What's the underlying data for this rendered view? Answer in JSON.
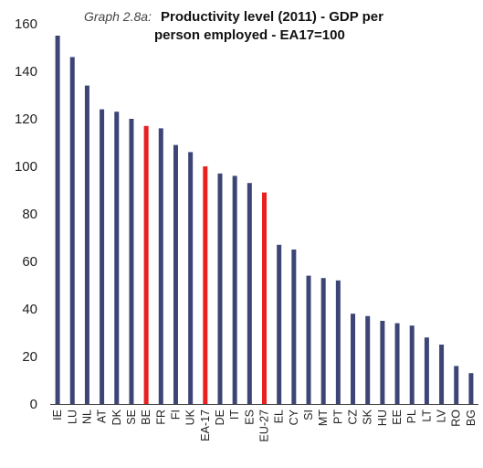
{
  "chart_data": {
    "type": "bar",
    "title_prefix": "Graph 2.8a:",
    "title_line1": "Productivity level (2011) - GDP per",
    "title_line2": "person employed - EA17=100",
    "xlabel": "",
    "ylabel": "",
    "ylim": [
      0,
      160
    ],
    "yticks": [
      "0",
      "20",
      "40",
      "60",
      "80",
      "100",
      "120",
      "140",
      "160"
    ],
    "grid": false,
    "categories": [
      "IE",
      "LU",
      "NL",
      "AT",
      "DK",
      "SE",
      "BE",
      "FR",
      "FI",
      "UK",
      "EA-17",
      "DE",
      "IT",
      "ES",
      "EU-27",
      "EL",
      "CY",
      "SI",
      "MT",
      "PT",
      "CZ",
      "SK",
      "HU",
      "EE",
      "PL",
      "LT",
      "LV",
      "RO",
      "BG"
    ],
    "values": [
      155,
      146,
      134,
      124,
      123,
      120,
      117,
      116,
      109,
      106,
      100,
      97,
      96,
      93,
      89,
      67,
      65,
      54,
      53,
      52,
      38,
      37,
      35,
      34,
      33,
      28,
      25,
      16,
      13
    ],
    "highlight": [
      "BE",
      "EA-17",
      "EU-27"
    ],
    "colors": {
      "bar": "#3d4577",
      "highlight": "#e8201f"
    }
  }
}
